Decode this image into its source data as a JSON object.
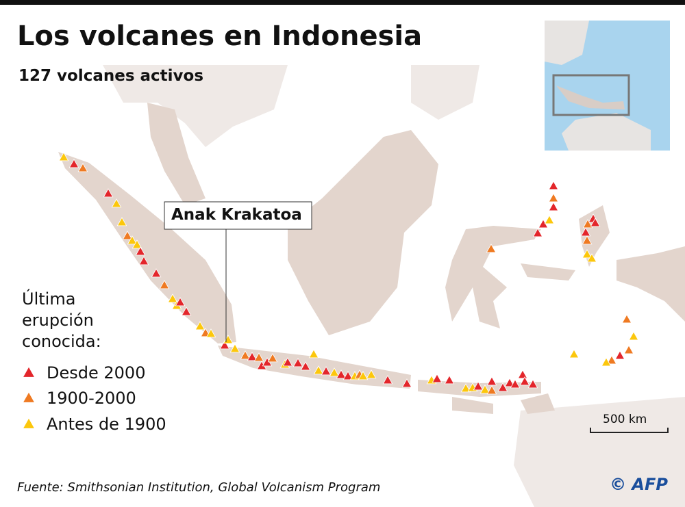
{
  "header": {
    "title": "Los volcanes en Indonesia",
    "subtitle": "127 volcanes activos"
  },
  "annotation": "Anak Krakatoa",
  "legend": {
    "title": "Última erupción conocida:",
    "items": [
      {
        "label": "Desde 2000",
        "color": "#e3262b"
      },
      {
        "label": "1900-2000",
        "color": "#ef7a22"
      },
      {
        "label": "Antes de 1900",
        "color": "#fcc70c"
      }
    ]
  },
  "scale": "500 km",
  "source": "Fuente: Smithsonian Institution, Global Volcanism Program",
  "credit": "© AFP"
}
